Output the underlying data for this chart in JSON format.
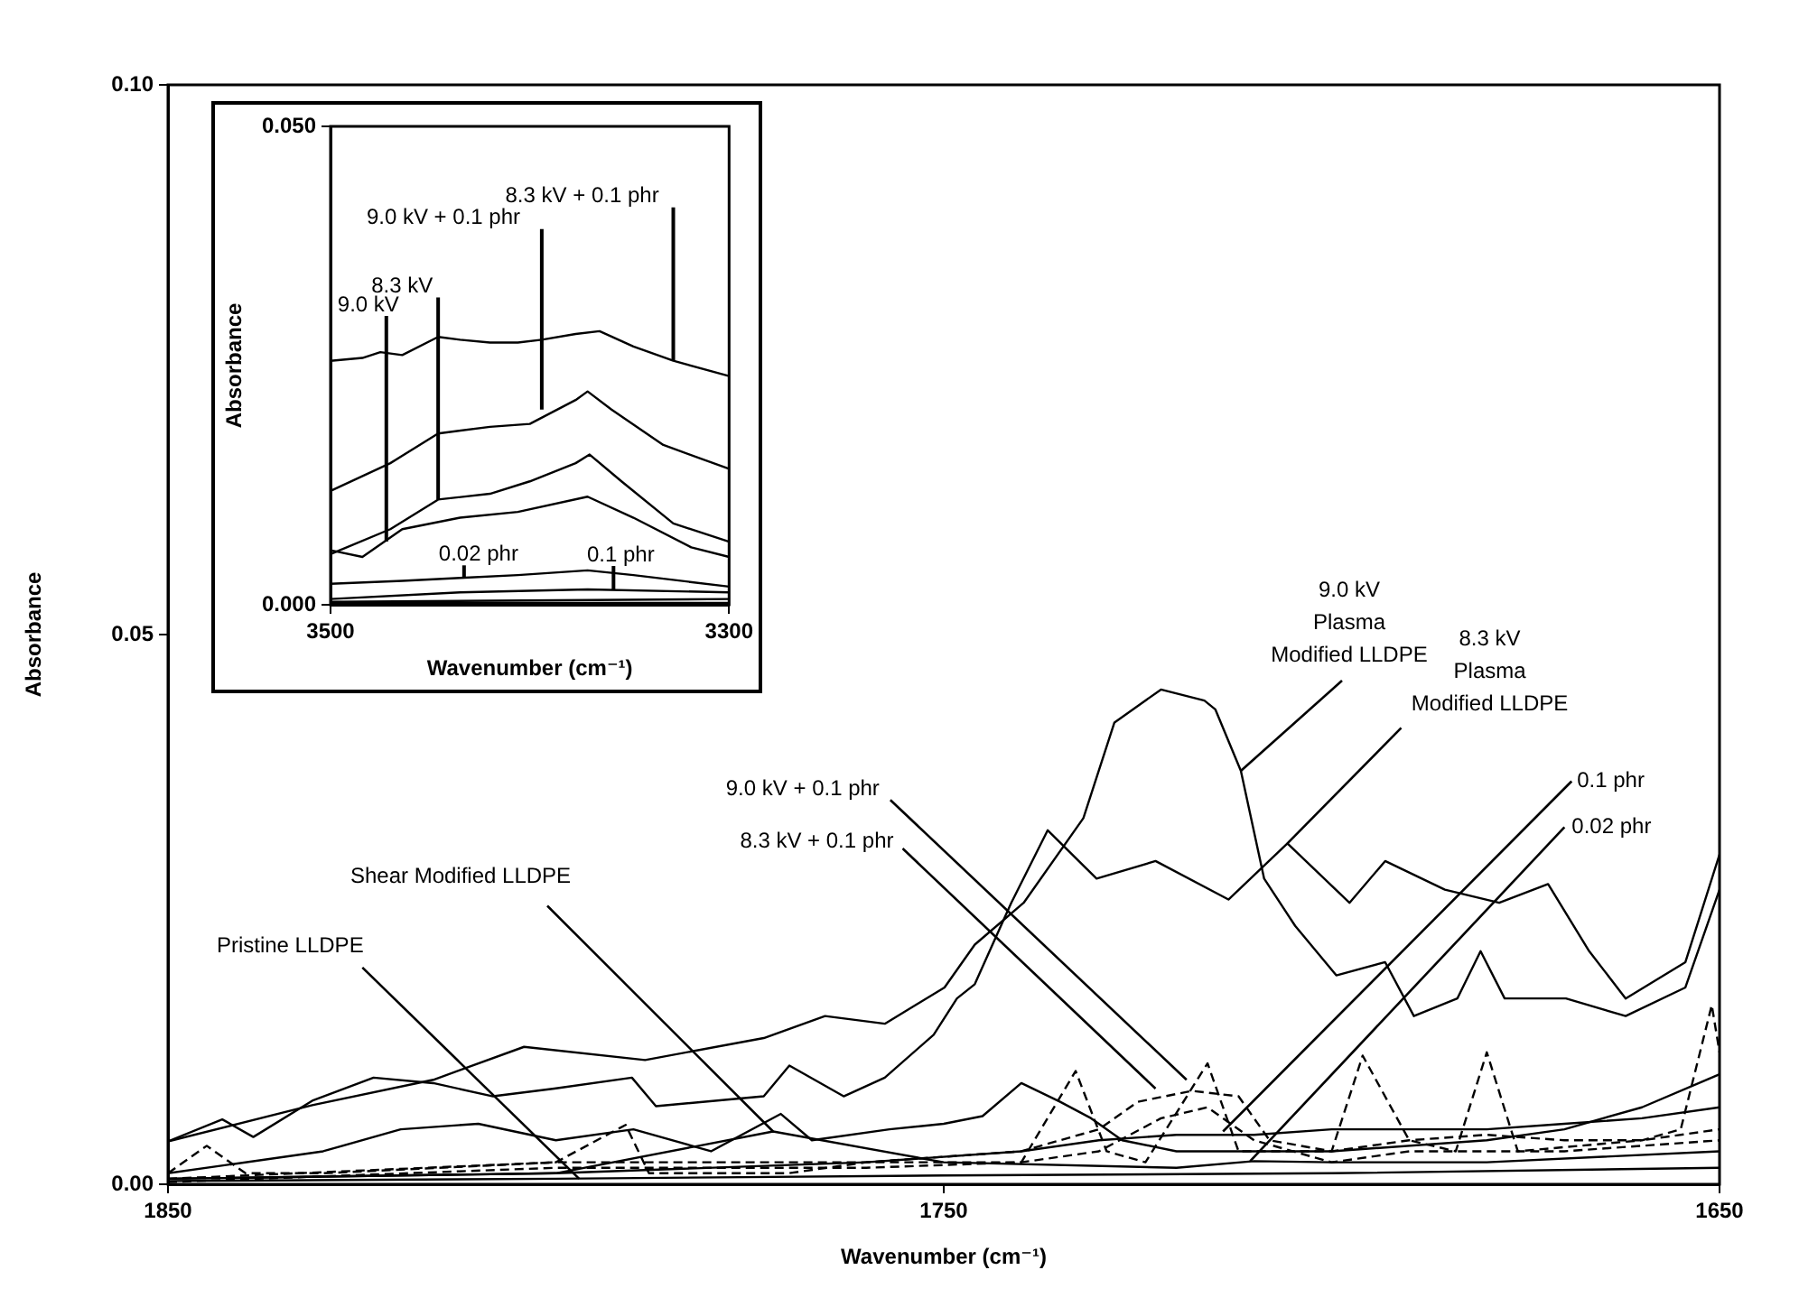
{
  "chart_data": [
    {
      "type": "line",
      "xlabel": "Wavenumber (cm⁻¹)",
      "ylabel": "Absorbance",
      "xlim": [
        1850,
        1650
      ],
      "xticks": [
        1850,
        1750,
        1650
      ],
      "ylim": [
        0,
        0.1
      ],
      "yticks": [
        {
          "value": 0,
          "label": "0.00"
        },
        {
          "value": 0.05,
          "label": "0.05"
        },
        {
          "value": 0.1,
          "label": "0.10"
        }
      ],
      "marker": "none",
      "series": [
        {
          "color": "#000000",
          "x": [
            1850,
            1843,
            1839,
            1831.4,
            1823.5,
            1815.8,
            1808.1,
            1800.2,
            1790.2,
            1787.1,
            1773.2,
            1769.9,
            1762.9,
            1757.6,
            1751.3,
            1748.3,
            1746,
            1741.3,
            1736.6,
            1730.3,
            1722.7,
            1713.3,
            1705.7,
            1697.7,
            1693.1,
            1685.4,
            1678.4,
            1672.1,
            1666.8,
            1662.1,
            1654.4,
            1650
          ],
          "values": [
            0.0039,
            0.0059,
            0.0043,
            0.0076,
            0.0097,
            0.0092,
            0.008,
            0.0087,
            0.0097,
            0.0071,
            0.008,
            0.0108,
            0.008,
            0.0097,
            0.0136,
            0.0169,
            0.0182,
            0.0256,
            0.0322,
            0.0278,
            0.0294,
            0.0259,
            0.031,
            0.0256,
            0.0294,
            0.0268,
            0.0256,
            0.0273,
            0.0212,
            0.0169,
            0.0202,
            0.03
          ]
        },
        {
          "color": "#000000",
          "x": [
            1850,
            1831.4,
            1815.8,
            1804.1,
            1788.5,
            1773.2,
            1765.3,
            1757.6,
            1749.9,
            1746,
            1739.7,
            1732,
            1728,
            1722,
            1716.4,
            1715,
            1711.7,
            1708.7,
            1704.7,
            1699.4,
            1693.1,
            1689.4,
            1683.8,
            1680.8,
            1677.7,
            1669.8,
            1662.1,
            1654.4,
            1650
          ],
          "values": [
            0.0039,
            0.0072,
            0.0095,
            0.0125,
            0.0113,
            0.0133,
            0.0153,
            0.0146,
            0.0179,
            0.0218,
            0.0256,
            0.0333,
            0.042,
            0.045,
            0.044,
            0.0432,
            0.0376,
            0.0278,
            0.0235,
            0.019,
            0.0202,
            0.0153,
            0.0169,
            0.0212,
            0.0169,
            0.0169,
            0.0153,
            0.0179,
            0.0268
          ]
        },
        {
          "color": "#000000",
          "line_style": "dashed",
          "x": [
            1850,
            1845,
            1840,
            1830,
            1800,
            1791,
            1788,
            1770,
            1760,
            1740,
            1733,
            1729,
            1724,
            1716,
            1712,
            1700,
            1696,
            1690,
            1684,
            1680,
            1676,
            1660,
            1655,
            1651,
            1650
          ],
          "values": [
            0.001,
            0.0035,
            0.001,
            0.001,
            0.002,
            0.0054,
            0.001,
            0.001,
            0.002,
            0.002,
            0.0103,
            0.003,
            0.002,
            0.011,
            0.003,
            0.003,
            0.0117,
            0.004,
            0.003,
            0.012,
            0.003,
            0.004,
            0.005,
            0.0163,
            0.012
          ]
        },
        {
          "color": "#000000",
          "x": [
            1850,
            1830,
            1820,
            1810,
            1800,
            1790,
            1780,
            1771,
            1767,
            1757,
            1750,
            1745,
            1740,
            1735,
            1731,
            1727,
            1720,
            1700,
            1680,
            1670,
            1660,
            1650
          ],
          "values": [
            0.001,
            0.003,
            0.005,
            0.0055,
            0.004,
            0.005,
            0.003,
            0.0064,
            0.004,
            0.005,
            0.0055,
            0.0062,
            0.0092,
            0.0075,
            0.006,
            0.004,
            0.003,
            0.003,
            0.004,
            0.005,
            0.007,
            0.01
          ]
        },
        {
          "color": "#000000",
          "x": [
            1850,
            1800,
            1760,
            1740,
            1730,
            1720,
            1710,
            1700,
            1690,
            1680,
            1670,
            1660,
            1650
          ],
          "values": [
            0.0005,
            0.001,
            0.002,
            0.003,
            0.004,
            0.0045,
            0.0045,
            0.005,
            0.005,
            0.005,
            0.0055,
            0.006,
            0.007
          ]
        },
        {
          "color": "#000000",
          "line_style": "dashed",
          "x": [
            1850,
            1800,
            1760,
            1740,
            1730,
            1725,
            1718,
            1712,
            1708,
            1700,
            1690,
            1680,
            1670,
            1660,
            1650
          ],
          "values": [
            0.0005,
            0.002,
            0.002,
            0.003,
            0.005,
            0.0075,
            0.0085,
            0.008,
            0.004,
            0.003,
            0.004,
            0.0045,
            0.004,
            0.004,
            0.005
          ]
        },
        {
          "color": "#000000",
          "line_style": "dashed",
          "x": [
            1850,
            1800,
            1760,
            1740,
            1730,
            1722,
            1716,
            1710,
            1700,
            1690,
            1680,
            1670,
            1650
          ],
          "values": [
            0.0002,
            0.0015,
            0.0015,
            0.002,
            0.003,
            0.006,
            0.007,
            0.004,
            0.002,
            0.003,
            0.003,
            0.003,
            0.004
          ]
        },
        {
          "color": "#000000",
          "x": [
            1850,
            1800,
            1750,
            1700,
            1650
          ],
          "values": [
            0.0003,
            0.0005,
            0.0008,
            0.001,
            0.0015
          ]
        },
        {
          "color": "#000000",
          "x": [
            1850,
            1800,
            1772,
            1750,
            1720,
            1710,
            1700,
            1680,
            1650
          ],
          "values": [
            0.0005,
            0.001,
            0.0048,
            0.002,
            0.0015,
            0.0021,
            0.002,
            0.002,
            0.003
          ]
        }
      ],
      "annotations": [
        {
          "text": "9.0 kV\nPlasma\nModified LLDPE",
          "x": 1711.7,
          "y": 0.0376
        },
        {
          "text": "8.3 kV\nPlasma\nModified LLDPE",
          "x": 1705.7,
          "y": 0.031
        },
        {
          "text": "9.0 kV + 0.1 phr",
          "x": 1718.7,
          "y": 0.0095
        },
        {
          "text": "8.3 kV + 0.1 phr",
          "x": 1722.7,
          "y": 0.0087
        },
        {
          "text": "0.1 phr",
          "x": 1714,
          "y": 0.0048
        },
        {
          "text": "0.02 phr",
          "x": 1710.5,
          "y": 0.0021
        },
        {
          "text": "Shear Modified LLDPE",
          "x": 1772,
          "y": 0.0048
        },
        {
          "text": "Pristine LLDPE",
          "x": 1797,
          "y": 0.0005
        }
      ]
    },
    {
      "type": "line",
      "xlabel": "Wavenumber (cm⁻¹)",
      "ylabel": "Absorbance",
      "xlim": [
        3500,
        3300
      ],
      "xticks": [
        3500,
        3300
      ],
      "ylim": [
        0,
        0.05
      ],
      "yticks": [
        {
          "value": 0,
          "label": "0.000"
        },
        {
          "value": 0.05,
          "label": "0.050"
        }
      ],
      "marker": "none",
      "series": [
        {
          "color": "#000000",
          "x": [
            3500,
            3484,
            3475,
            3464,
            3446,
            3435,
            3420,
            3406,
            3394,
            3377,
            3365,
            3348,
            3328,
            3300
          ],
          "values": [
            0.0255,
            0.0258,
            0.0264,
            0.0261,
            0.028,
            0.0277,
            0.0274,
            0.0274,
            0.0277,
            0.0283,
            0.0286,
            0.027,
            0.0255,
            0.0239
          ]
        },
        {
          "color": "#000000",
          "x": [
            3500,
            3470,
            3446,
            3420,
            3400,
            3377,
            3371,
            3359,
            3333,
            3300
          ],
          "values": [
            0.0119,
            0.0148,
            0.0179,
            0.0186,
            0.0189,
            0.0214,
            0.0223,
            0.0204,
            0.0167,
            0.0142
          ]
        },
        {
          "color": "#000000",
          "x": [
            3500,
            3470,
            3446,
            3420,
            3400,
            3377,
            3370,
            3354,
            3328,
            3300
          ],
          "values": [
            0.0053,
            0.0079,
            0.011,
            0.0116,
            0.0129,
            0.0148,
            0.0157,
            0.0129,
            0.0085,
            0.0066
          ]
        },
        {
          "color": "#000000",
          "x": [
            3500,
            3484,
            3464,
            3435,
            3406,
            3371,
            3348,
            3319,
            3300
          ],
          "values": [
            0.0057,
            0.005,
            0.0079,
            0.0091,
            0.0097,
            0.0113,
            0.0091,
            0.006,
            0.005
          ]
        },
        {
          "color": "#000000",
          "x": [
            3500,
            3464,
            3435,
            3406,
            3371,
            3348,
            3300
          ],
          "values": [
            0.0022,
            0.0025,
            0.0028,
            0.0031,
            0.0036,
            0.0031,
            0.0019
          ]
        },
        {
          "color": "#000000",
          "x": [
            3500,
            3435,
            3371,
            3300
          ],
          "values": [
            0.0006,
            0.0013,
            0.0016,
            0.0013
          ]
        },
        {
          "color": "#000000",
          "x": [
            3500,
            3300
          ],
          "values": [
            0.0003,
            0.0006
          ]
        },
        {
          "color": "#000000",
          "x": [
            3500,
            3300
          ],
          "values": [
            0.0002,
            0.0002
          ]
        }
      ],
      "annotations": [
        {
          "text": "9.0 kV",
          "x": 3472,
          "y": 0.0066
        },
        {
          "text": "8.3 kV",
          "x": 3446,
          "y": 0.011
        },
        {
          "text": "9.0 kV + 0.1 phr",
          "x": 3394,
          "y": 0.0204
        },
        {
          "text": "8.3 kV + 0.1 phr",
          "x": 3328,
          "y": 0.0255
        },
        {
          "text": "0.02 phr",
          "x": 3433,
          "y": 0.0028
        },
        {
          "text": "0.1 phr",
          "x": 3358,
          "y": 0.0016
        }
      ]
    }
  ]
}
